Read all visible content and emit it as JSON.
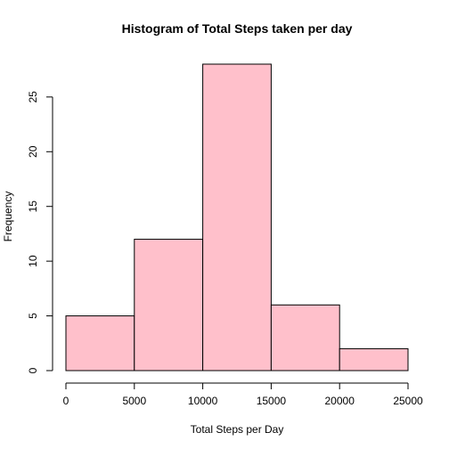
{
  "chart_data": {
    "type": "bar",
    "title": "Histogram of Total Steps taken per day",
    "xlabel": "Total Steps per Day",
    "ylabel": "Frequency",
    "bins": [
      {
        "from": 0,
        "to": 5000,
        "value": 5
      },
      {
        "from": 5000,
        "to": 10000,
        "value": 12
      },
      {
        "from": 10000,
        "to": 15000,
        "value": 28
      },
      {
        "from": 15000,
        "to": 20000,
        "value": 6
      },
      {
        "from": 20000,
        "to": 25000,
        "value": 2
      }
    ],
    "xlim": [
      0,
      25000
    ],
    "ylim": [
      0,
      28
    ],
    "x_ticks": [
      0,
      5000,
      10000,
      15000,
      20000,
      25000
    ],
    "y_ticks": [
      0,
      5,
      10,
      15,
      20,
      25
    ],
    "x_tick_labels": [
      "0",
      "5000",
      "10000",
      "15000",
      "20000",
      "25000"
    ],
    "y_tick_labels": [
      "0",
      "5",
      "10",
      "15",
      "20",
      "25"
    ],
    "bar_color": "#FFC0CB",
    "edge_color": "#000000",
    "grid": false,
    "legend": "none"
  }
}
